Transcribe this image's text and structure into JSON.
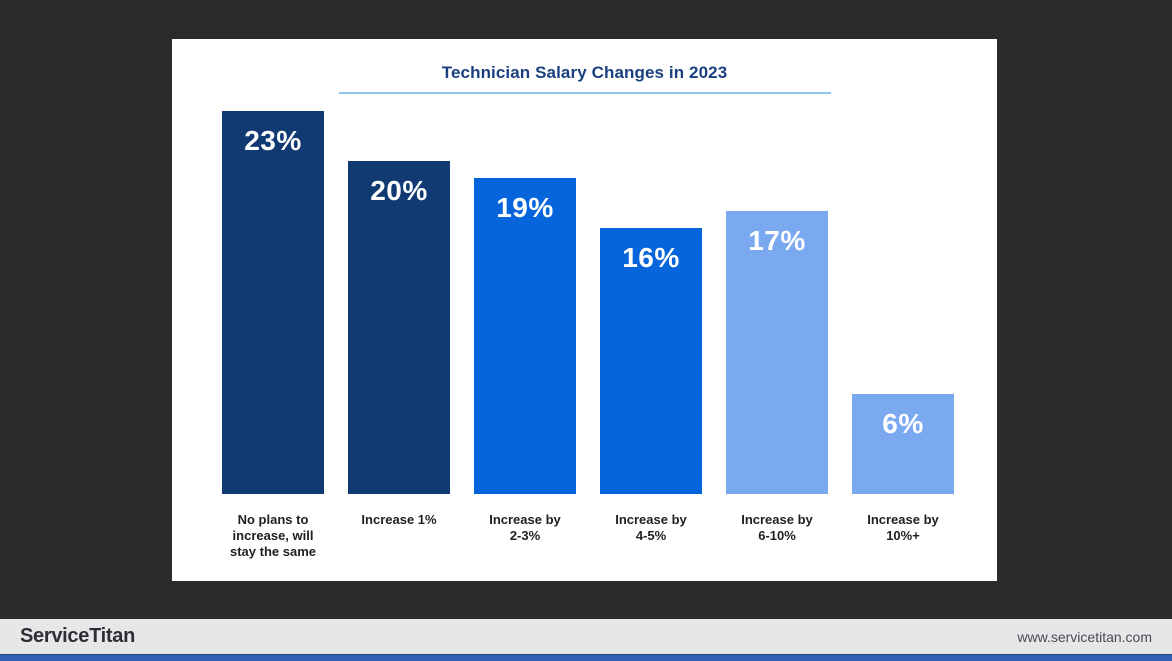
{
  "page": {
    "background_color": "#2a2a2d",
    "card_color": "#ffffff"
  },
  "chart_data": {
    "type": "bar",
    "title": "Technician Salary Changes in 2023",
    "categories": [
      "No plans to\nincrease, will\nstay the same",
      "Increase 1%",
      "Increase by\n2-3%",
      "Increase by\n4-5%",
      "Increase by\n6-10%",
      "Increase by\n10%+"
    ],
    "values": [
      23,
      20,
      19,
      16,
      17,
      6
    ],
    "value_labels": [
      "23%",
      "20%",
      "19%",
      "16%",
      "17%",
      "6%"
    ],
    "bar_colors": [
      "#123a72",
      "#123a72",
      "#0765dc",
      "#0765dc",
      "#7aa9f0",
      "#7aa9f0"
    ],
    "value_label_color": "#ffffff",
    "category_label_color": "#1f2024",
    "title_color": "#1b4080",
    "title_underline_color": "#8ec6ee",
    "xlabel": "",
    "ylabel": "",
    "ylim": [
      0,
      23
    ],
    "grid": false,
    "legend": "none"
  },
  "footer": {
    "logo_text": "ServiceTitan",
    "url_text": "www.servicetitan.com",
    "bar_color": "#e6e7e9",
    "accent_strip_color": "#3161b2"
  }
}
